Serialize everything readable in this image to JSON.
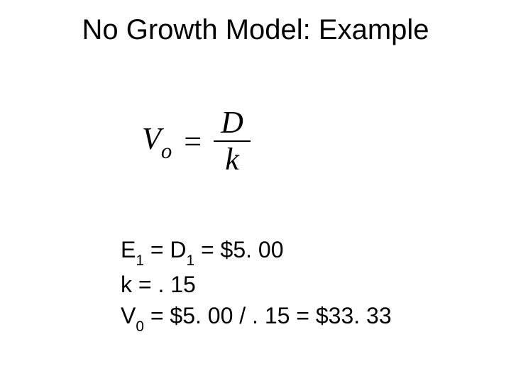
{
  "slide": {
    "title": "No Growth Model: Example",
    "background_color": "#ffffff",
    "text_color": "#000000",
    "title_fontsize": 40,
    "body_fontsize": 32,
    "formula": {
      "lhs_base": "V",
      "lhs_sub": "o",
      "eq": "=",
      "numerator": "D",
      "denominator": "k",
      "font_family": "Times New Roman",
      "font_style": "italic",
      "fontsize": 44
    },
    "lines": {
      "l1": {
        "E_base": "E",
        "E_sub": "1",
        "eq1": " = ",
        "D_base": "D",
        "D_sub": "1",
        "rest": " = $5. 00"
      },
      "l2": {
        "text": "k = . 15"
      },
      "l3": {
        "V_base": "V",
        "V_sub": "0",
        "rest": " = $5. 00 / . 15 = $33. 33"
      }
    }
  }
}
